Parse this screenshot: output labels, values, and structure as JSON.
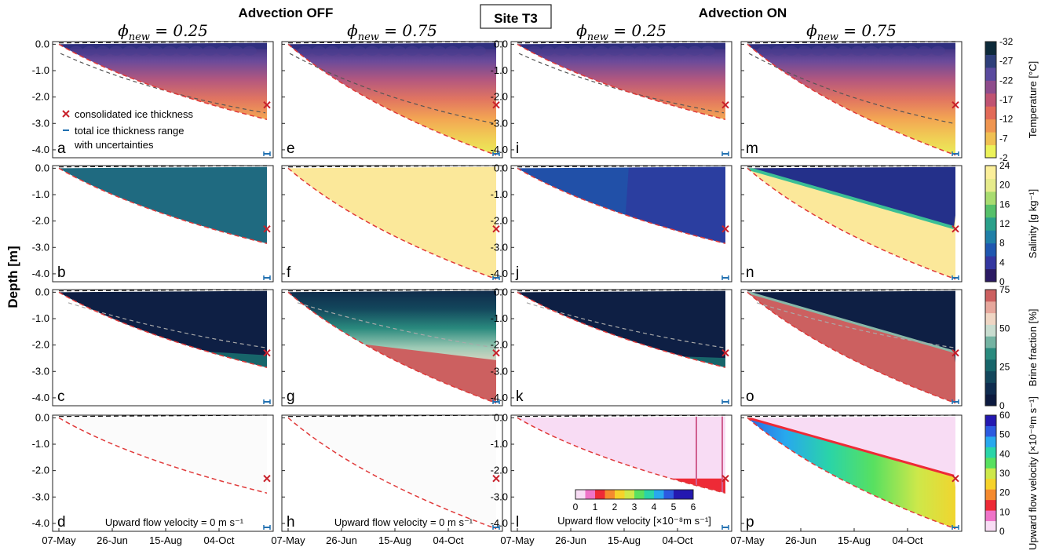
{
  "title": "Site T3",
  "group_headers": [
    "Advection OFF",
    "Advection ON"
  ],
  "y_axis_label": "Depth [m]",
  "x_ticks": [
    "07-May",
    "26-Jun",
    "15-Aug",
    "04-Oct"
  ],
  "y_ticks": [
    "0.0",
    "-1.0",
    "-2.0",
    "-3.0",
    "-4.0"
  ],
  "columns": [
    {
      "phi_text": "ϕ",
      "phi_sub": "new",
      "phi_val": "= 0.25"
    },
    {
      "phi_text": "ϕ",
      "phi_sub": "new",
      "phi_val": "= 0.75"
    },
    {
      "phi_text": "ϕ",
      "phi_sub": "new",
      "phi_val": "= 0.25"
    },
    {
      "phi_text": "ϕ",
      "phi_sub": "new",
      "phi_val": "= 0.75"
    }
  ],
  "panel_letters": [
    [
      "a",
      "e",
      "i",
      "m"
    ],
    [
      "b",
      "f",
      "j",
      "n"
    ],
    [
      "c",
      "g",
      "k",
      "o"
    ],
    [
      "d",
      "h",
      "l",
      "p"
    ]
  ],
  "legend": {
    "consolidated": "consolidated ice thickness",
    "range": "total ice thickness range",
    "uncert": "with uncertainties"
  },
  "velocity_zero_text": "Upward flow velocity = 0 m s⁻¹",
  "inset_colorbar": {
    "label": "Upward flow velocity [×10⁻⁸m s⁻¹]",
    "ticks": [
      "0",
      "1",
      "2",
      "3",
      "4",
      "5",
      "6"
    ]
  },
  "colorbars": [
    {
      "label": "Temperature [°C]",
      "ticks": [
        "-32",
        "-27",
        "-22",
        "-17",
        "-12",
        "-7",
        "-2"
      ],
      "colors": [
        "#ecf25a",
        "#f0c052",
        "#ef9550",
        "#e26a58",
        "#c05372",
        "#8e4c8c",
        "#5a4a9e",
        "#2e3f7a",
        "#0d2a3a"
      ]
    },
    {
      "label": "Salinity [g kg⁻¹]",
      "ticks": [
        "24",
        "20",
        "16",
        "12",
        "8",
        "4",
        "0"
      ],
      "colors": [
        "#2b1a63",
        "#3437a0",
        "#1f57b0",
        "#1f7fa7",
        "#2aa08a",
        "#56c06a",
        "#a8dc70",
        "#e6eb8c",
        "#fbef9a"
      ]
    },
    {
      "label": "Brine fraction [%]",
      "ticks": [
        "75",
        "50",
        "25",
        "0"
      ],
      "colors": [
        "#0c1a3f",
        "#0f2c4f",
        "#13475c",
        "#17656a",
        "#2a8a7e",
        "#74b3a2",
        "#c8dccf",
        "#efd6c4",
        "#e6a79c",
        "#cc6060"
      ]
    },
    {
      "label": "Upward flow velocity [×10⁻⁸m s⁻¹]",
      "ticks": [
        "60",
        "50",
        "40",
        "30",
        "20",
        "10",
        "0"
      ],
      "colors": [
        "#f8dcf4",
        "#ef74c8",
        "#ee2a36",
        "#f58a2e",
        "#f6d22a",
        "#cde84a",
        "#58e060",
        "#2ad4a8",
        "#28a8ee",
        "#2c5ae0",
        "#2418b0"
      ]
    }
  ],
  "chart_data": {
    "type": "heatmap",
    "title": "Site T3",
    "ylabel": "Depth [m]",
    "ylim": [
      -4.3,
      0.1
    ],
    "x_categories": [
      "07-May",
      "26-Jun",
      "15-Aug",
      "04-Oct"
    ],
    "panels": [
      {
        "id": "a",
        "variable": "Temperature",
        "advection": "OFF",
        "phi_new": 0.25,
        "final_thickness_m": -2.85,
        "contours": [
          "0.3",
          "0.8"
        ]
      },
      {
        "id": "e",
        "variable": "Temperature",
        "advection": "OFF",
        "phi_new": 0.75,
        "final_thickness_m": -4.2,
        "contours": [
          "0.3"
        ]
      },
      {
        "id": "i",
        "variable": "Temperature",
        "advection": "ON",
        "phi_new": 0.25,
        "final_thickness_m": -2.85,
        "contours": [
          "0.8"
        ]
      },
      {
        "id": "m",
        "variable": "Temperature",
        "advection": "ON",
        "phi_new": 0.75,
        "final_thickness_m": -4.2,
        "contours": [
          "0.3"
        ]
      },
      {
        "id": "b",
        "variable": "Salinity",
        "advection": "OFF",
        "phi_new": 0.25,
        "final_thickness_m": -2.85,
        "salinity_g_per_kg": 10
      },
      {
        "id": "f",
        "variable": "Salinity",
        "advection": "OFF",
        "phi_new": 0.75,
        "final_thickness_m": -4.2,
        "salinity_g_per_kg": 24
      },
      {
        "id": "j",
        "variable": "Salinity",
        "advection": "ON",
        "phi_new": 0.25,
        "final_thickness_m": -2.85,
        "salinity_g_per_kg": 4
      },
      {
        "id": "n",
        "variable": "Salinity",
        "advection": "ON",
        "phi_new": 0.75,
        "final_thickness_m": -4.2,
        "salinity_g_per_kg": 2
      },
      {
        "id": "c",
        "variable": "Brine fraction",
        "advection": "OFF",
        "phi_new": 0.25,
        "contours": [
          "5",
          "10"
        ]
      },
      {
        "id": "g",
        "variable": "Brine fraction",
        "advection": "OFF",
        "phi_new": 0.75,
        "contours": [
          "10",
          "50"
        ]
      },
      {
        "id": "k",
        "variable": "Brine fraction",
        "advection": "ON",
        "phi_new": 0.25,
        "contours": [
          "5",
          "10"
        ]
      },
      {
        "id": "o",
        "variable": "Brine fraction",
        "advection": "ON",
        "phi_new": 0.75,
        "contours": [
          "5",
          "10"
        ]
      },
      {
        "id": "d",
        "variable": "Upward flow velocity",
        "advection": "OFF",
        "phi_new": 0.25,
        "value": 0
      },
      {
        "id": "h",
        "variable": "Upward flow velocity",
        "advection": "OFF",
        "phi_new": 0.75,
        "value": 0
      },
      {
        "id": "l",
        "variable": "Upward flow velocity",
        "advection": "ON",
        "phi_new": 0.25
      },
      {
        "id": "p",
        "variable": "Upward flow velocity",
        "advection": "ON",
        "phi_new": 0.75
      }
    ],
    "consolidated_ice_thickness_m": -2.3,
    "total_ice_thickness_range_m": -4.15
  }
}
